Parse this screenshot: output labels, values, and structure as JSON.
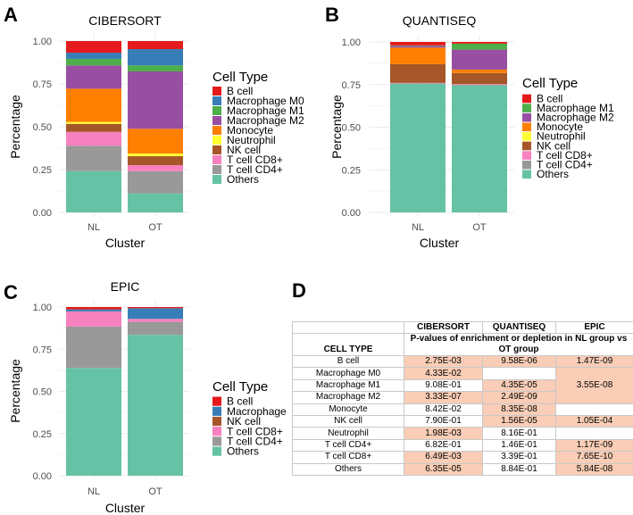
{
  "colors": {
    "B cell": "#e41a1c",
    "Macrophage M0": "#377eb8",
    "Macrophage": "#377eb8",
    "Macrophage M1": "#4daf4a",
    "Macrophage M2": "#984ea3",
    "Monocyte": "#ff7f00",
    "Neutrophil": "#ffff33",
    "NK cell": "#a65628",
    "T cell CD8+": "#f781bf",
    "T cell CD4+": "#999999",
    "Others": "#66c2a5",
    "highlight": "#f9cdb6"
  },
  "chart_data": [
    {
      "panel": "A",
      "type": "bar",
      "stacked": true,
      "title": "CIBERSORT",
      "xlabel": "Cluster",
      "ylabel": "Percentage",
      "ylim": [
        0,
        1
      ],
      "yticks": [
        "0.00",
        "0.25",
        "0.50",
        "0.75",
        "1.00"
      ],
      "categories": [
        "NL",
        "OT"
      ],
      "legend_title": "Cell Type",
      "legend_position": "right",
      "series": [
        {
          "name": "B cell",
          "values": [
            0.068,
            0.047
          ]
        },
        {
          "name": "Macrophage M0",
          "values": [
            0.036,
            0.095
          ]
        },
        {
          "name": "Macrophage M1",
          "values": [
            0.038,
            0.035
          ]
        },
        {
          "name": "Macrophage M2",
          "values": [
            0.136,
            0.335
          ]
        },
        {
          "name": "Monocyte",
          "values": [
            0.194,
            0.144
          ]
        },
        {
          "name": "Neutrophil",
          "values": [
            0.011,
            0.016
          ]
        },
        {
          "name": "NK cell",
          "values": [
            0.047,
            0.052
          ]
        },
        {
          "name": "T cell CD8+",
          "values": [
            0.081,
            0.035
          ]
        },
        {
          "name": "T cell CD4+",
          "values": [
            0.148,
            0.13
          ]
        },
        {
          "name": "Others",
          "values": [
            0.241,
            0.111
          ]
        }
      ]
    },
    {
      "panel": "B",
      "type": "bar",
      "stacked": true,
      "title": "QUANTISEQ",
      "xlabel": "Cluster",
      "ylabel": "Percentage",
      "ylim": [
        0,
        1
      ],
      "yticks": [
        "0.00",
        "0.25",
        "0.50",
        "0.75",
        "1.00"
      ],
      "categories": [
        "NL",
        "OT"
      ],
      "legend_title": "Cell Type",
      "legend_position": "right",
      "series": [
        {
          "name": "B cell",
          "values": [
            0.02,
            0.01
          ]
        },
        {
          "name": "Macrophage M1",
          "values": [
            0.003,
            0.035
          ]
        },
        {
          "name": "Macrophage M2",
          "values": [
            0.01,
            0.117
          ]
        },
        {
          "name": "Monocyte",
          "values": [
            0.097,
            0.02
          ]
        },
        {
          "name": "Neutrophil",
          "values": [
            0.0,
            0.0
          ]
        },
        {
          "name": "NK cell",
          "values": [
            0.11,
            0.065
          ]
        },
        {
          "name": "T cell CD8+",
          "values": [
            0.003,
            0.004
          ]
        },
        {
          "name": "T cell CD4+",
          "values": [
            0.002,
            0.004
          ]
        },
        {
          "name": "Others",
          "values": [
            0.755,
            0.745
          ]
        }
      ]
    },
    {
      "panel": "C",
      "type": "bar",
      "stacked": true,
      "title": "EPIC",
      "xlabel": "Cluster",
      "ylabel": "Percentage",
      "ylim": [
        0,
        1
      ],
      "yticks": [
        "0.00",
        "0.25",
        "0.50",
        "0.75",
        "1.00"
      ],
      "categories": [
        "NL",
        "OT"
      ],
      "legend_title": "Cell Type",
      "legend_position": "right",
      "series": [
        {
          "name": "B cell",
          "values": [
            0.014,
            0.007
          ]
        },
        {
          "name": "Macrophage",
          "values": [
            0.012,
            0.063
          ]
        },
        {
          "name": "NK cell",
          "values": [
            0.0,
            0.0
          ]
        },
        {
          "name": "T cell CD8+",
          "values": [
            0.09,
            0.018
          ]
        },
        {
          "name": "T cell CD4+",
          "values": [
            0.245,
            0.077
          ]
        },
        {
          "name": "Others",
          "values": [
            0.639,
            0.835
          ]
        }
      ]
    },
    {
      "panel": "D",
      "type": "table",
      "columns": [
        "CIBERSORT",
        "QUANTISEQ",
        "EPIC"
      ],
      "row_header": "CELL TYPE",
      "subheader": "P-values of enrichment or depletion in NL group vs OT group",
      "rows": [
        {
          "cell": "B cell",
          "values": [
            "2.75E-03",
            "9.58E-06",
            "1.47E-09"
          ],
          "highlight": [
            true,
            true,
            true
          ]
        },
        {
          "cell": "Macrophage M0",
          "values": [
            "4.33E-02",
            "",
            "3.55E-08"
          ],
          "highlight": [
            true,
            false,
            true
          ]
        },
        {
          "cell": "Macrophage M1",
          "values": [
            "9.08E-01",
            "4.35E-05",
            null
          ],
          "highlight": [
            false,
            true,
            true
          ]
        },
        {
          "cell": "Macrophage M2",
          "values": [
            "3.33E-07",
            "2.49E-09",
            null
          ],
          "highlight": [
            true,
            true,
            true
          ]
        },
        {
          "cell": "Monocyte",
          "values": [
            "8.42E-02",
            "8.35E-08",
            ""
          ],
          "highlight": [
            false,
            true,
            false
          ]
        },
        {
          "cell": "NK cell",
          "values": [
            "7.90E-01",
            "1.56E-05",
            "1.05E-04"
          ],
          "highlight": [
            false,
            true,
            true
          ]
        },
        {
          "cell": "Neutrophil",
          "values": [
            "1.98E-03",
            "8.16E-01",
            ""
          ],
          "highlight": [
            true,
            false,
            false
          ]
        },
        {
          "cell": "T cell CD4+",
          "values": [
            "6.82E-01",
            "1.46E-01",
            "1.17E-09"
          ],
          "highlight": [
            false,
            false,
            true
          ]
        },
        {
          "cell": "T cell CD8+",
          "values": [
            "6.49E-03",
            "3.39E-01",
            "7.65E-10"
          ],
          "highlight": [
            true,
            false,
            true
          ]
        },
        {
          "cell": "Others",
          "values": [
            "6.35E-05",
            "8.84E-01",
            "5.84E-08"
          ],
          "highlight": [
            true,
            false,
            true
          ]
        }
      ]
    }
  ]
}
